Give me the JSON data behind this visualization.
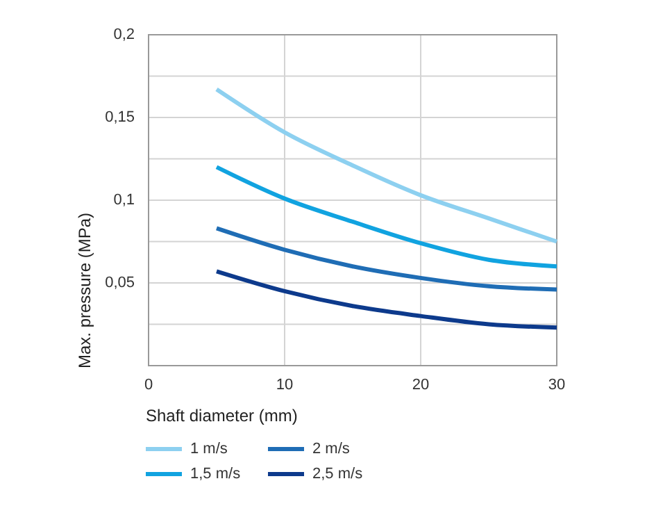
{
  "chart_data": {
    "type": "line",
    "xlabel": "Shaft diameter  (mm)",
    "ylabel": "Max. pressure  (MPa)",
    "xlim": [
      0,
      30
    ],
    "xticks": [
      0,
      10,
      20,
      30
    ],
    "ylim": [
      0,
      0.2
    ],
    "yticks": [
      {
        "value": 0,
        "label": null
      },
      {
        "value": 0.025,
        "label": null
      },
      {
        "value": 0.05,
        "label": "0,05"
      },
      {
        "value": 0.075,
        "label": null
      },
      {
        "value": 0.1,
        "label": "0,1"
      },
      {
        "value": 0.125,
        "label": null
      },
      {
        "value": 0.15,
        "label": "0,15"
      },
      {
        "value": 0.175,
        "label": null
      },
      {
        "value": 0.2,
        "label": "0,2"
      }
    ],
    "grid": true,
    "legend": "bottom",
    "marker": "none",
    "line_style": "solid",
    "x": [
      5,
      10,
      15,
      20,
      25,
      30
    ],
    "series": [
      {
        "name": "1 m/s",
        "color": "#8dd0f0",
        "values": [
          0.167,
          0.141,
          0.121,
          0.103,
          0.089,
          0.075
        ]
      },
      {
        "name": "1,5 m/s",
        "color": "#11a3e0",
        "values": [
          0.12,
          0.101,
          0.087,
          0.074,
          0.064,
          0.06
        ]
      },
      {
        "name": "2 m/s",
        "color": "#1f6db5",
        "values": [
          0.083,
          0.07,
          0.06,
          0.053,
          0.048,
          0.046
        ]
      },
      {
        "name": "2,5 m/s",
        "color": "#0d3a8c",
        "values": [
          0.057,
          0.045,
          0.036,
          0.03,
          0.025,
          0.023
        ]
      }
    ]
  }
}
